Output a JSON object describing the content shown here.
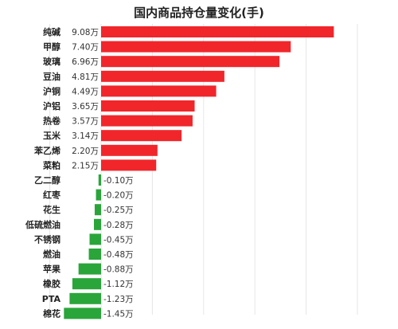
{
  "chart_data": {
    "type": "bar",
    "orientation": "horizontal",
    "title": "国内商品持仓量变化(手)",
    "unit": "万",
    "grid": true,
    "xlim": [
      -2,
      10
    ],
    "categories": [
      "纯碱",
      "甲醇",
      "玻璃",
      "豆油",
      "沪铜",
      "沪铝",
      "热卷",
      "玉米",
      "苯乙烯",
      "菜粕",
      "乙二醇",
      "红枣",
      "花生",
      "低硫燃油",
      "不锈钢",
      "燃油",
      "苹果",
      "橡胶",
      "PTA",
      "棉花"
    ],
    "values": [
      9.08,
      7.4,
      6.96,
      4.81,
      4.49,
      3.65,
      3.57,
      3.14,
      2.2,
      2.15,
      -0.1,
      -0.2,
      -0.25,
      -0.28,
      -0.45,
      -0.48,
      -0.88,
      -1.12,
      -1.23,
      -1.45
    ],
    "value_labels": [
      "9.08万",
      "7.40万",
      "6.96万",
      "4.81万",
      "4.49万",
      "3.65万",
      "3.57万",
      "3.14万",
      "2.20万",
      "2.15万",
      "-0.10万",
      "-0.20万",
      "-0.25万",
      "-0.28万",
      "-0.45万",
      "-0.48万",
      "-0.88万",
      "-1.12万",
      "-1.23万",
      "-1.45万"
    ],
    "colors": {
      "positive": "#f0262b",
      "negative": "#2aa53a",
      "grid": "#e6e6e6"
    }
  }
}
